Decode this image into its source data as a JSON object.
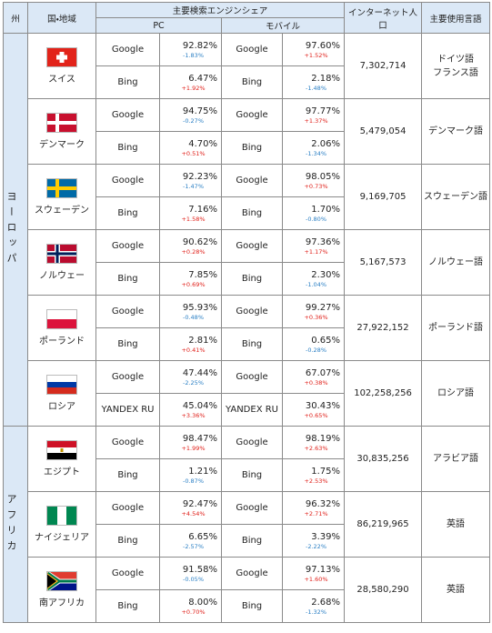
{
  "header": {
    "region": "州",
    "country": "国・地域",
    "search_share": "主要検索エンジンシェア",
    "pc": "PC",
    "mobile": "モバイル",
    "internet_population": "インターネット人口",
    "language": "主要使用言語"
  },
  "regions": [
    {
      "name": "ヨーロッパ",
      "countries": [
        {
          "name": "スイス",
          "rows": [
            {
              "pc_engine": "Google",
              "pc_share": "92.82%",
              "pc_change": "-1.83%",
              "mobile_engine": "Google",
              "mobile_share": "97.60%",
              "mobile_change": "+1.52%"
            },
            {
              "pc_engine": "Bing",
              "pc_share": "6.47%",
              "pc_change": "+1.92%",
              "mobile_engine": "Bing",
              "mobile_share": "2.18%",
              "mobile_change": "-1.48%"
            }
          ],
          "internet_population": "7,302,714",
          "languages": [
            "ドイツ語",
            "フランス語"
          ]
        },
        {
          "name": "デンマーク",
          "rows": [
            {
              "pc_engine": "Google",
              "pc_share": "94.75%",
              "pc_change": "-0.27%",
              "mobile_engine": "Google",
              "mobile_share": "97.77%",
              "mobile_change": "+1.37%"
            },
            {
              "pc_engine": "Bing",
              "pc_share": "4.70%",
              "pc_change": "+0.51%",
              "mobile_engine": "Bing",
              "mobile_share": "2.06%",
              "mobile_change": "-1.34%"
            }
          ],
          "internet_population": "5,479,054",
          "languages": [
            "デンマーク語"
          ]
        },
        {
          "name": "スウェーデン",
          "rows": [
            {
              "pc_engine": "Google",
              "pc_share": "92.23%",
              "pc_change": "-1.47%",
              "mobile_engine": "Google",
              "mobile_share": "98.05%",
              "mobile_change": "+0.73%"
            },
            {
              "pc_engine": "Bing",
              "pc_share": "7.16%",
              "pc_change": "+1.58%",
              "mobile_engine": "Bing",
              "mobile_share": "1.70%",
              "mobile_change": "-0.80%"
            }
          ],
          "internet_population": "9,169,705",
          "languages": [
            "スウェーデン語"
          ]
        },
        {
          "name": "ノルウェー",
          "rows": [
            {
              "pc_engine": "Google",
              "pc_share": "90.62%",
              "pc_change": "+0.28%",
              "mobile_engine": "Google",
              "mobile_share": "97.36%",
              "mobile_change": "+1.17%"
            },
            {
              "pc_engine": "Bing",
              "pc_share": "7.85%",
              "pc_change": "+0.69%",
              "mobile_engine": "Bing",
              "mobile_share": "2.30%",
              "mobile_change": "-1.04%"
            }
          ],
          "internet_population": "5,167,573",
          "languages": [
            "ノルウェー語"
          ]
        },
        {
          "name": "ポーランド",
          "rows": [
            {
              "pc_engine": "Google",
              "pc_share": "95.93%",
              "pc_change": "-0.48%",
              "mobile_engine": "Google",
              "mobile_share": "99.27%",
              "mobile_change": "+0.36%"
            },
            {
              "pc_engine": "Bing",
              "pc_share": "2.81%",
              "pc_change": "+0.41%",
              "mobile_engine": "Bing",
              "mobile_share": "0.65%",
              "mobile_change": "-0.28%"
            }
          ],
          "internet_population": "27,922,152",
          "languages": [
            "ポーランド語"
          ]
        },
        {
          "name": "ロシア",
          "rows": [
            {
              "pc_engine": "Google",
              "pc_share": "47.44%",
              "pc_change": "-2.25%",
              "mobile_engine": "Google",
              "mobile_share": "67.07%",
              "mobile_change": "+0.38%"
            },
            {
              "pc_engine": "YANDEX RU",
              "pc_share": "45.04%",
              "pc_change": "+3.36%",
              "mobile_engine": "YANDEX RU",
              "mobile_share": "30.43%",
              "mobile_change": "+0.65%"
            }
          ],
          "internet_population": "102,258,256",
          "languages": [
            "ロシア語"
          ]
        }
      ]
    },
    {
      "name": "アフリカ",
      "countries": [
        {
          "name": "エジプト",
          "rows": [
            {
              "pc_engine": "Google",
              "pc_share": "98.47%",
              "pc_change": "+1.99%",
              "mobile_engine": "Google",
              "mobile_share": "98.19%",
              "mobile_change": "+2.63%"
            },
            {
              "pc_engine": "Bing",
              "pc_share": "1.21%",
              "pc_change": "-0.87%",
              "mobile_engine": "Bing",
              "mobile_share": "1.75%",
              "mobile_change": "+2.53%"
            }
          ],
          "internet_population": "30,835,256",
          "languages": [
            "アラビア語"
          ]
        },
        {
          "name": "ナイジェリア",
          "rows": [
            {
              "pc_engine": "Google",
              "pc_share": "92.47%",
              "pc_change": "+4.54%",
              "mobile_engine": "Google",
              "mobile_share": "96.32%",
              "mobile_change": "+2.71%"
            },
            {
              "pc_engine": "Bing",
              "pc_share": "6.65%",
              "pc_change": "-2.57%",
              "mobile_engine": "Bing",
              "mobile_share": "3.39%",
              "mobile_change": "-2.22%"
            }
          ],
          "internet_population": "86,219,965",
          "languages": [
            "英語"
          ]
        },
        {
          "name": "南アフリカ",
          "rows": [
            {
              "pc_engine": "Google",
              "pc_share": "91.58%",
              "pc_change": "-0.05%",
              "mobile_engine": "Google",
              "mobile_share": "97.13%",
              "mobile_change": "+1.60%"
            },
            {
              "pc_engine": "Bing",
              "pc_share": "8.00%",
              "pc_change": "+0.70%",
              "mobile_engine": "Bing",
              "mobile_share": "2.68%",
              "mobile_change": "-1.32%"
            }
          ],
          "internet_population": "28,580,290",
          "languages": [
            "英語"
          ]
        }
      ]
    }
  ]
}
